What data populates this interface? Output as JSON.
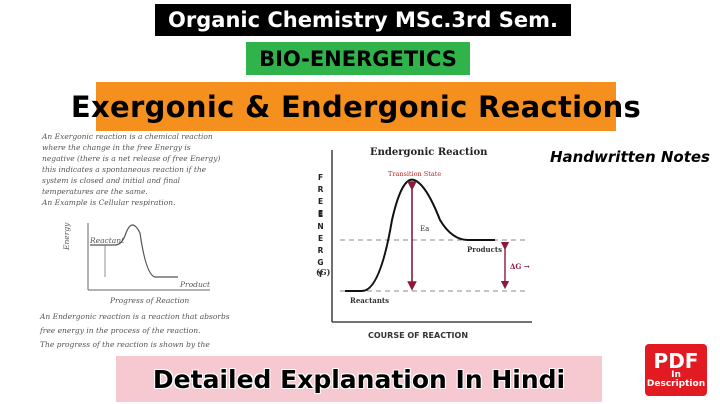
{
  "header": {
    "title": "Organic Chemistry MSc.3rd Sem.",
    "topic": "BIO-ENERGETICS",
    "headline": "Exergonic & Endergonic Reactions"
  },
  "tag": "Handwritten Notes",
  "notes": {
    "lines": [
      "An Exergonic reaction is a chemical reaction",
      "where the change in the free Energy is",
      "negative (there is a net release of free Energy)",
      "this indicates a spontaneous reaction if the",
      "system is closed and initial and final",
      "temperatures are the same.",
      "An Example is Cellular respiration."
    ],
    "graph_labels": [
      "Energy",
      "Reactant",
      "Product",
      "Progress of Reaction"
    ],
    "lines_after": [
      "An Endergonic reaction is a reaction that absorbs",
      "free energy in the process of the reaction.",
      "The progress of the reaction is shown by the"
    ]
  },
  "diagram": {
    "title": "Endergonic Reaction",
    "transition_state": "Transition State",
    "y_axis_top": "FREE",
    "y_axis_bottom": "ENERGY",
    "y_unit": "(G)",
    "activation": "Ea",
    "products": "Products",
    "delta_g": "ΔG →",
    "reactants": "Reactants",
    "x_axis": "COURSE OF REACTION"
  },
  "footer": "Detailed Explanation In Hindi",
  "badge": {
    "top": "PDF",
    "middle": "In",
    "bottom": "Description"
  }
}
